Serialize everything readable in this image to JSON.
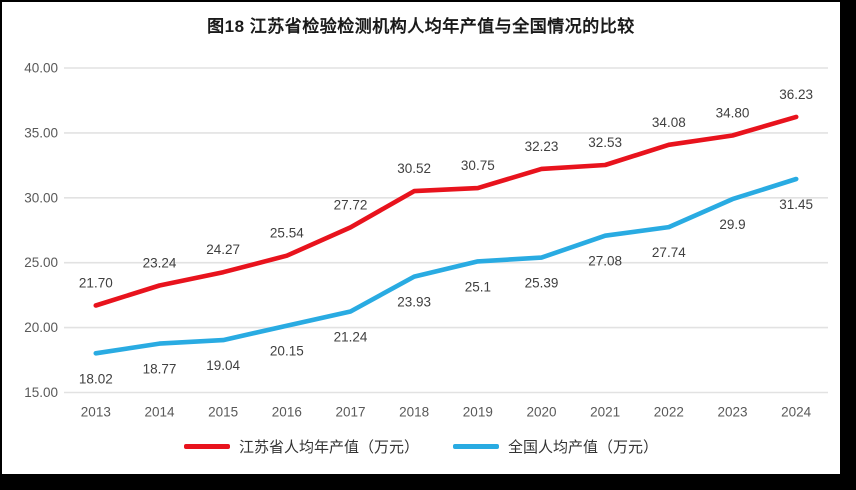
{
  "title": "图18  江苏省检验检测机构人均年产值与全国情况的比较",
  "legend": {
    "items": [
      {
        "label": "江苏省人均年产值（万元）",
        "color": "#e8131d"
      },
      {
        "label": "全国人均产值（万元）",
        "color": "#29abe2"
      }
    ]
  },
  "chart_data": {
    "type": "line",
    "title": "图18  江苏省检验检测机构人均年产值与全国情况的比较",
    "categories": [
      "2013",
      "2014",
      "2015",
      "2016",
      "2017",
      "2018",
      "2019",
      "2020",
      "2021",
      "2022",
      "2023",
      "2024"
    ],
    "series": [
      {
        "name": "江苏省人均年产值（万元）",
        "color": "#e8131d",
        "values": [
          21.7,
          23.24,
          24.27,
          25.54,
          27.72,
          30.52,
          30.75,
          32.23,
          32.53,
          34.08,
          34.8,
          36.23
        ],
        "labels": [
          "21.70",
          "23.24",
          "24.27",
          "25.54",
          "27.72",
          "30.52",
          "30.75",
          "32.23",
          "32.53",
          "34.08",
          "34.80",
          "36.23"
        ],
        "label_position": "above"
      },
      {
        "name": "全国人均产值（万元）",
        "color": "#29abe2",
        "values": [
          18.02,
          18.77,
          19.04,
          20.15,
          21.24,
          23.93,
          25.1,
          25.39,
          27.08,
          27.74,
          29.9,
          31.45
        ],
        "labels": [
          "18.02",
          "18.77",
          "19.04",
          "20.15",
          "21.24",
          "23.93",
          "25.1",
          "25.39",
          "27.08",
          "27.74",
          "29.9",
          "31.45"
        ],
        "label_position": "below"
      }
    ],
    "xlabel": "",
    "ylabel": "",
    "ylim": [
      15,
      40
    ],
    "yticks": [
      15,
      20,
      25,
      30,
      35,
      40
    ],
    "ytick_labels": [
      "15.00",
      "20.00",
      "25.00",
      "30.00",
      "35.00",
      "40.00"
    ],
    "grid": true,
    "legend_position": "bottom"
  }
}
